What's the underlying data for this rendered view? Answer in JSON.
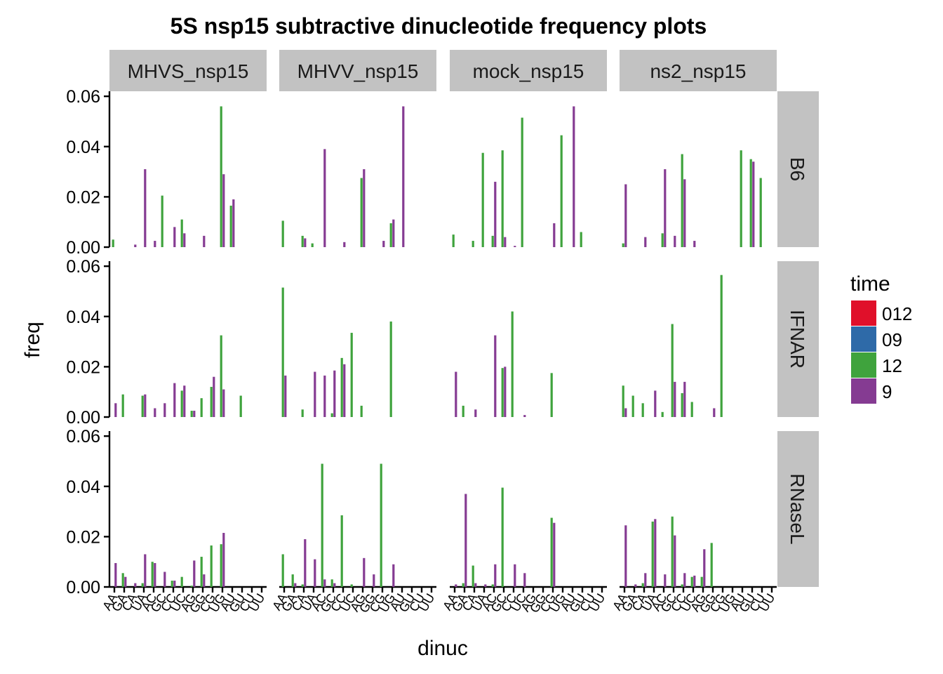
{
  "chart_data": {
    "type": "bar",
    "title": "5S nsp15 subtractive dinucleotide frequency plots",
    "xlabel": "dinuc",
    "ylabel": "freq",
    "ylim": [
      0,
      0.062
    ],
    "yticks": [
      "0.00",
      "0.02",
      "0.04",
      "0.06"
    ],
    "ytick_values": [
      0,
      0.02,
      0.04,
      0.06
    ],
    "categories": [
      "AA",
      "GA",
      "CA",
      "UA",
      "AC",
      "GC",
      "CC",
      "UC",
      "AG",
      "GG",
      "CG",
      "UG",
      "AU",
      "GU",
      "CU",
      "UU"
    ],
    "panel_columns": [
      "MHVS_nsp15",
      "MHVV_nsp15",
      "mock_nsp15",
      "ns2_nsp15"
    ],
    "panel_rows": [
      "B6",
      "IFNAR",
      "RNaseL"
    ],
    "legend": {
      "title": "time",
      "placement": "right",
      "entries": [
        {
          "name": "012",
          "color": "#e0102a"
        },
        {
          "name": "09",
          "color": "#2e6aa8"
        },
        {
          "name": "12",
          "color": "#3fa33d"
        },
        {
          "name": "9",
          "color": "#853b92"
        }
      ]
    },
    "series_order": [
      "12",
      "9"
    ],
    "panels": [
      {
        "row": "B6",
        "col": "MHVS_nsp15",
        "series": [
          {
            "name": "12",
            "values": [
              0.003,
              0,
              0,
              0,
              0,
              0.0205,
              0,
              0.011,
              0,
              0,
              0,
              0.056,
              0.0165,
              0,
              0,
              0
            ]
          },
          {
            "name": "9",
            "values": [
              0,
              0,
              0.001,
              0.031,
              0.0025,
              0,
              0.008,
              0.0055,
              0,
              0.0045,
              0,
              0.029,
              0.019,
              0,
              0,
              0
            ]
          }
        ]
      },
      {
        "row": "B6",
        "col": "MHVV_nsp15",
        "series": [
          {
            "name": "12",
            "values": [
              0.0105,
              0,
              0.0045,
              0.0015,
              0,
              0,
              0,
              0,
              0.0275,
              0,
              0,
              0.0095,
              0,
              0,
              0,
              0
            ]
          },
          {
            "name": "9",
            "values": [
              0,
              0,
              0.0035,
              0,
              0.039,
              0,
              0.002,
              0,
              0.031,
              0,
              0.0025,
              0.011,
              0.056,
              0,
              0,
              0
            ]
          }
        ]
      },
      {
        "row": "B6",
        "col": "mock_nsp15",
        "series": [
          {
            "name": "12",
            "values": [
              0.005,
              0,
              0.0025,
              0.0375,
              0.0045,
              0.0385,
              0,
              0.0515,
              0,
              0,
              0,
              0.0445,
              0,
              0.006,
              0,
              0
            ]
          },
          {
            "name": "9",
            "values": [
              0,
              0,
              0,
              0,
              0.026,
              0.004,
              0.0005,
              0,
              0,
              0,
              0.0095,
              0,
              0.056,
              0,
              0,
              0
            ]
          }
        ]
      },
      {
        "row": "B6",
        "col": "ns2_nsp15",
        "series": [
          {
            "name": "12",
            "values": [
              0.0015,
              0,
              0,
              0,
              0.0055,
              0,
              0.037,
              0,
              0,
              0,
              0,
              0,
              0.0385,
              0.035,
              0.0275,
              0
            ]
          },
          {
            "name": "9",
            "values": [
              0.025,
              0,
              0.004,
              0,
              0.031,
              0.0045,
              0.027,
              0.0025,
              0,
              0,
              0,
              0,
              0,
              0.034,
              0,
              0
            ]
          }
        ]
      },
      {
        "row": "IFNAR",
        "col": "MHVS_nsp15",
        "series": [
          {
            "name": "12",
            "values": [
              0,
              0.009,
              0,
              0.0085,
              0,
              0,
              0,
              0.0105,
              0.0025,
              0.0075,
              0.012,
              0.0325,
              0,
              0.0085,
              0,
              0
            ]
          },
          {
            "name": "9",
            "values": [
              0.0055,
              0,
              0,
              0.009,
              0.0035,
              0.0055,
              0.0135,
              0.0125,
              0.0025,
              0,
              0.016,
              0.011,
              0,
              0,
              0,
              0
            ]
          }
        ]
      },
      {
        "row": "IFNAR",
        "col": "MHVV_nsp15",
        "series": [
          {
            "name": "12",
            "values": [
              0.0515,
              0,
              0.003,
              0,
              0,
              0.0015,
              0.0235,
              0.0335,
              0.0045,
              0,
              0,
              0.038,
              0,
              0,
              0,
              0
            ]
          },
          {
            "name": "9",
            "values": [
              0.0165,
              0,
              0,
              0.018,
              0.0165,
              0.0185,
              0.021,
              0,
              0,
              0,
              0,
              0,
              0,
              0,
              0,
              0
            ]
          }
        ]
      },
      {
        "row": "IFNAR",
        "col": "mock_nsp15",
        "series": [
          {
            "name": "12",
            "values": [
              0,
              0.0045,
              0,
              0,
              0,
              0.0195,
              0.042,
              0,
              0,
              0,
              0.0175,
              0,
              0,
              0,
              0,
              0
            ]
          },
          {
            "name": "9",
            "values": [
              0.018,
              0,
              0.003,
              0,
              0.0325,
              0.02,
              0,
              0.0008,
              0,
              0,
              0,
              0,
              0,
              0,
              0,
              0
            ]
          }
        ]
      },
      {
        "row": "IFNAR",
        "col": "ns2_nsp15",
        "series": [
          {
            "name": "12",
            "values": [
              0.0125,
              0.0085,
              0.0055,
              0,
              0.002,
              0.037,
              0.0095,
              0.006,
              0,
              0,
              0.0565,
              0,
              0,
              0,
              0,
              0
            ]
          },
          {
            "name": "9",
            "values": [
              0.0035,
              0,
              0,
              0.0105,
              0,
              0.014,
              0.014,
              0,
              0,
              0.0035,
              0,
              0,
              0,
              0,
              0,
              0
            ]
          }
        ]
      },
      {
        "row": "RNaseL",
        "col": "MHVS_nsp15",
        "series": [
          {
            "name": "12",
            "values": [
              0,
              0.0055,
              0,
              0.0015,
              0.01,
              0,
              0.0025,
              0.004,
              0.0005,
              0.012,
              0.0165,
              0.017,
              0,
              0,
              0,
              0
            ]
          },
          {
            "name": "9",
            "values": [
              0.0095,
              0.004,
              0.0015,
              0.013,
              0.0095,
              0.006,
              0.0025,
              0,
              0.0105,
              0.005,
              0,
              0.0215,
              0,
              0,
              0,
              0
            ]
          }
        ]
      },
      {
        "row": "RNaseL",
        "col": "MHVV_nsp15",
        "series": [
          {
            "name": "12",
            "values": [
              0.013,
              0.005,
              0.001,
              0,
              0.049,
              0.003,
              0.0285,
              0.001,
              0,
              0,
              0.049,
              0,
              0,
              0,
              0,
              0
            ]
          },
          {
            "name": "9",
            "values": [
              0,
              0.0015,
              0.019,
              0.011,
              0.003,
              0.0015,
              0,
              0,
              0.0115,
              0.005,
              0,
              0.009,
              0,
              0,
              0,
              0
            ]
          }
        ]
      },
      {
        "row": "RNaseL",
        "col": "mock_nsp15",
        "series": [
          {
            "name": "12",
            "values": [
              0,
              0.0015,
              0.0085,
              0,
              0.001,
              0.0395,
              0,
              0,
              0,
              0,
              0.0275,
              0,
              0,
              0,
              0,
              0
            ]
          },
          {
            "name": "9",
            "values": [
              0.001,
              0.037,
              0.0015,
              0.001,
              0.009,
              0,
              0.009,
              0.0055,
              0,
              0,
              0.0255,
              0,
              0,
              0,
              0,
              0
            ]
          }
        ]
      },
      {
        "row": "RNaseL",
        "col": "ns2_nsp15",
        "series": [
          {
            "name": "12",
            "values": [
              0,
              0,
              0.0015,
              0.026,
              0,
              0.028,
              0.001,
              0.004,
              0.004,
              0.0175,
              0,
              0,
              0,
              0,
              0,
              0
            ]
          },
          {
            "name": "9",
            "values": [
              0.0245,
              0.001,
              0.0055,
              0.027,
              0.005,
              0.0205,
              0.0055,
              0.0045,
              0.015,
              0,
              0,
              0,
              0,
              0,
              0,
              0
            ]
          }
        ]
      }
    ]
  }
}
